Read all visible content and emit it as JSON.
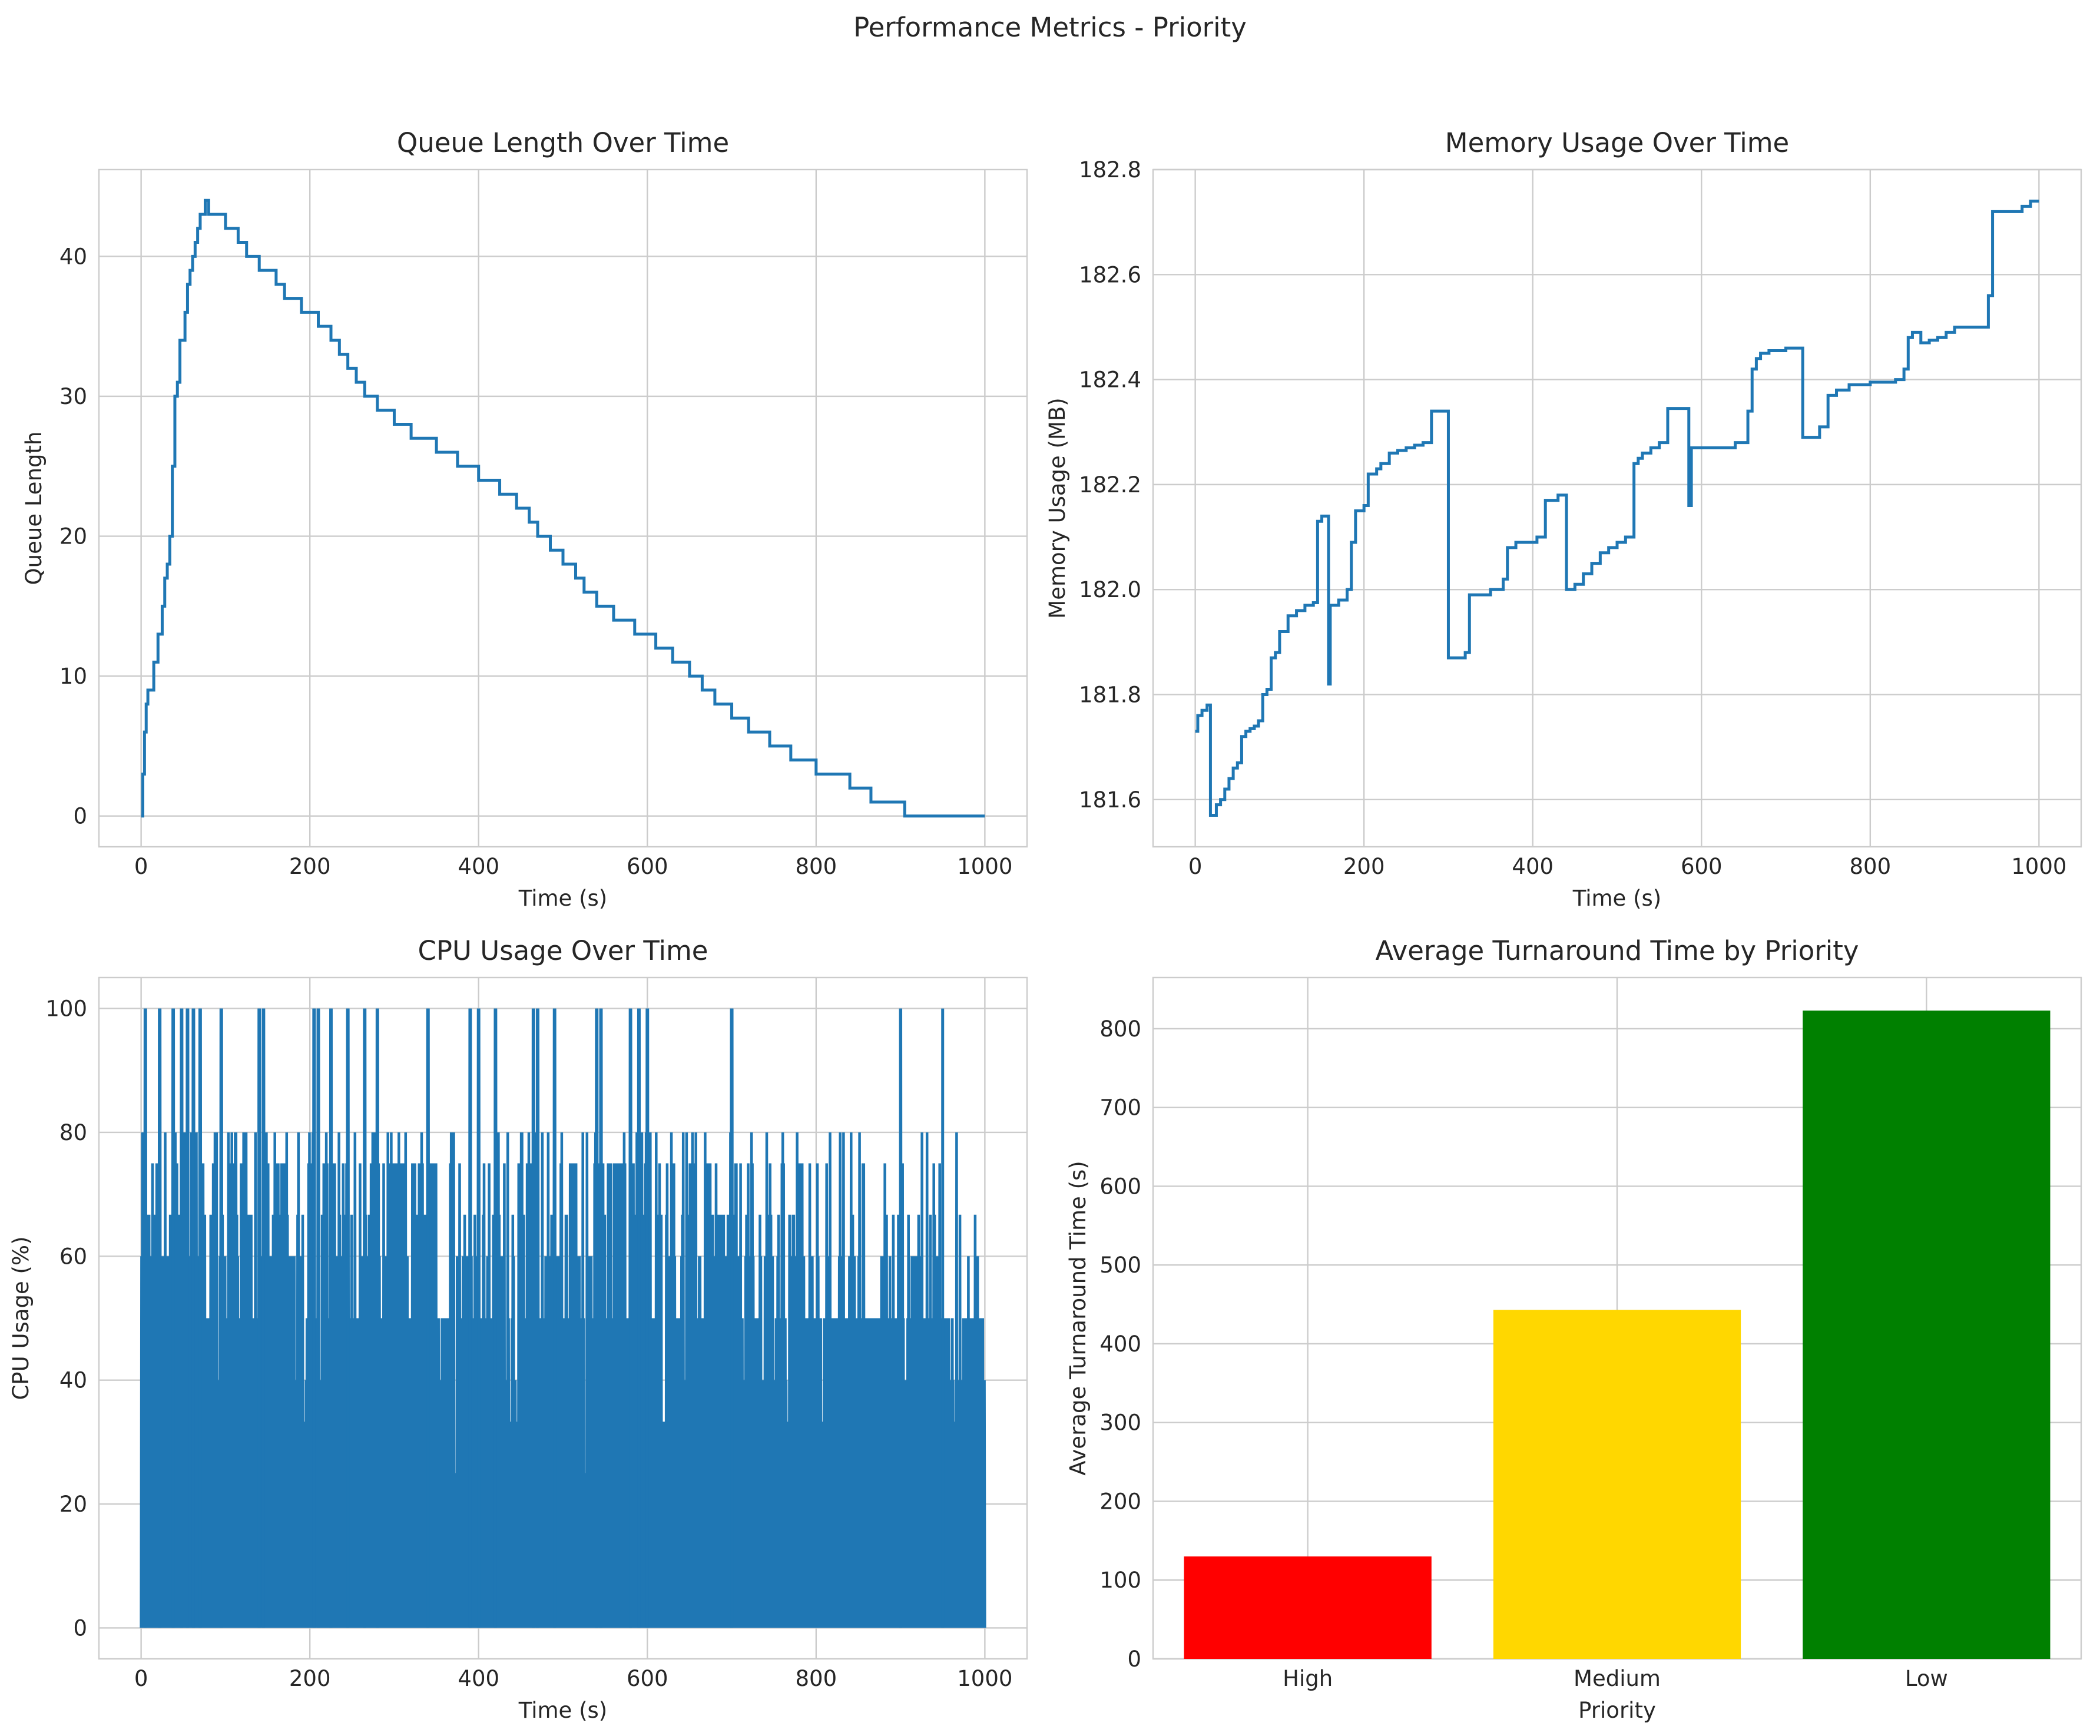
{
  "figure_title": "Performance Metrics - Priority",
  "colors": {
    "line": "#1f77b4",
    "grid": "#cccccc",
    "text": "#262626"
  },
  "chart_data": [
    {
      "type": "line",
      "title": "Queue Length Over Time",
      "xlabel": "Time (s)",
      "ylabel": "Queue Length",
      "xlim": [
        -50,
        1050
      ],
      "ylim": [
        -2.2,
        46.2
      ],
      "xticks": [
        0,
        200,
        400,
        600,
        800,
        1000
      ],
      "yticks": [
        0,
        10,
        20,
        30,
        40
      ],
      "grid": true,
      "step": true,
      "x": [
        0,
        2,
        4,
        6,
        8,
        10,
        15,
        20,
        25,
        28,
        31,
        34,
        37,
        40,
        43,
        46,
        49,
        52,
        55,
        58,
        61,
        64,
        67,
        70,
        73,
        76,
        80,
        85,
        100,
        115,
        125,
        140,
        160,
        170,
        190,
        210,
        225,
        235,
        245,
        255,
        265,
        280,
        300,
        320,
        350,
        375,
        400,
        425,
        445,
        460,
        470,
        485,
        500,
        515,
        525,
        540,
        560,
        585,
        610,
        630,
        650,
        665,
        680,
        700,
        720,
        745,
        770,
        800,
        840,
        865,
        905,
        930,
        960,
        1000
      ],
      "y": [
        0,
        3,
        6,
        8,
        9,
        9,
        11,
        13,
        15,
        17,
        18,
        20,
        25,
        30,
        31,
        34,
        34,
        36,
        38,
        39,
        40,
        41,
        42,
        43,
        43,
        44,
        43,
        43,
        42,
        41,
        40,
        39,
        38,
        37,
        36,
        35,
        34,
        33,
        32,
        31,
        30,
        29,
        28,
        27,
        26,
        25,
        24,
        23,
        22,
        21,
        20,
        19,
        18,
        17,
        16,
        15,
        14,
        13,
        12,
        11,
        10,
        9,
        8,
        7,
        6,
        5,
        4,
        3,
        2,
        1,
        0,
        0,
        0,
        0
      ]
    },
    {
      "type": "line",
      "title": "Memory Usage Over Time",
      "xlabel": "Time (s)",
      "ylabel": "Memory Usage (MB)",
      "xlim": [
        -50,
        1050
      ],
      "ylim": [
        181.51,
        182.8
      ],
      "xticks": [
        0,
        200,
        400,
        600,
        800,
        1000
      ],
      "yticks": [
        181.6,
        181.8,
        182.0,
        182.2,
        182.4,
        182.6,
        182.8
      ],
      "grid": true,
      "step": true,
      "x": [
        0,
        3,
        8,
        14,
        18,
        25,
        30,
        35,
        40,
        45,
        50,
        55,
        60,
        65,
        70,
        75,
        80,
        85,
        90,
        95,
        100,
        110,
        120,
        130,
        140,
        145,
        150,
        158,
        160,
        170,
        180,
        185,
        190,
        200,
        205,
        215,
        220,
        230,
        240,
        250,
        260,
        270,
        280,
        295,
        300,
        305,
        310,
        320,
        325,
        330,
        350,
        360,
        365,
        370,
        380,
        395,
        405,
        415,
        430,
        440,
        450,
        460,
        470,
        480,
        490,
        500,
        510,
        520,
        525,
        530,
        540,
        550,
        560,
        575,
        585,
        588,
        590,
        600,
        640,
        650,
        655,
        660,
        665,
        670,
        680,
        700,
        720,
        730,
        740,
        750,
        760,
        775,
        800,
        830,
        840,
        845,
        850,
        860,
        870,
        880,
        890,
        900,
        920,
        940,
        945,
        950,
        980,
        990,
        1000
      ],
      "y": [
        181.73,
        181.76,
        181.77,
        181.78,
        181.57,
        181.59,
        181.6,
        181.62,
        181.64,
        181.66,
        181.67,
        181.72,
        181.73,
        181.735,
        181.74,
        181.75,
        181.8,
        181.81,
        181.87,
        181.88,
        181.92,
        181.95,
        181.96,
        181.97,
        181.975,
        182.13,
        182.14,
        181.82,
        181.97,
        181.98,
        182.0,
        182.09,
        182.15,
        182.16,
        182.22,
        182.23,
        182.24,
        182.26,
        182.265,
        182.27,
        182.275,
        182.28,
        182.34,
        182.34,
        181.87,
        181.87,
        181.87,
        181.88,
        181.99,
        181.99,
        182.0,
        182.0,
        182.02,
        182.08,
        182.09,
        182.09,
        182.1,
        182.17,
        182.18,
        182.0,
        182.01,
        182.03,
        182.05,
        182.07,
        182.08,
        182.09,
        182.1,
        182.24,
        182.25,
        182.26,
        182.27,
        182.28,
        182.345,
        182.345,
        182.16,
        182.27,
        182.27,
        182.27,
        182.28,
        182.28,
        182.34,
        182.42,
        182.44,
        182.45,
        182.455,
        182.46,
        182.29,
        182.29,
        182.31,
        182.37,
        182.38,
        182.39,
        182.395,
        182.4,
        182.42,
        182.48,
        182.49,
        182.47,
        182.475,
        182.48,
        182.49,
        182.5,
        182.5,
        182.56,
        182.72,
        182.72,
        182.73,
        182.74,
        182.74
      ]
    },
    {
      "type": "line",
      "title": "CPU Usage Over Time",
      "xlabel": "Time (s)",
      "ylabel": "CPU Usage (%)",
      "xlim": [
        -50,
        1050
      ],
      "ylim": [
        -5,
        105
      ],
      "xticks": [
        0,
        200,
        400,
        600,
        800,
        1000
      ],
      "yticks": [
        0,
        20,
        40,
        60,
        80,
        100
      ],
      "grid": true,
      "note": "dense high-frequency signal oscillating between 0 and peaks mostly 50–100%",
      "x_range": [
        0,
        1000
      ],
      "peaks_x": [
        5,
        22,
        38,
        48,
        55,
        62,
        70,
        95,
        140,
        145,
        205,
        210,
        225,
        245,
        265,
        280,
        340,
        390,
        400,
        420,
        465,
        470,
        490,
        540,
        545,
        580,
        590,
        600,
        700,
        900,
        950
      ],
      "peaks_y": [
        100,
        100,
        100,
        100,
        100,
        100,
        100,
        100,
        100,
        100,
        100,
        100,
        100,
        100,
        100,
        100,
        100,
        100,
        100,
        100,
        100,
        100,
        100,
        100,
        100,
        100,
        100,
        100,
        100,
        100,
        100
      ]
    },
    {
      "type": "bar",
      "title": "Average Turnaround Time by Priority",
      "xlabel": "Priority",
      "ylabel": "Average Turnaround Time (s)",
      "categories": [
        "High",
        "Medium",
        "Low"
      ],
      "values": [
        130,
        443,
        823
      ],
      "colors": [
        "#ff0000",
        "#ffd700",
        "#008000"
      ],
      "ylim": [
        0,
        865
      ],
      "yticks": [
        0,
        100,
        200,
        300,
        400,
        500,
        600,
        700,
        800
      ],
      "grid": true
    }
  ]
}
